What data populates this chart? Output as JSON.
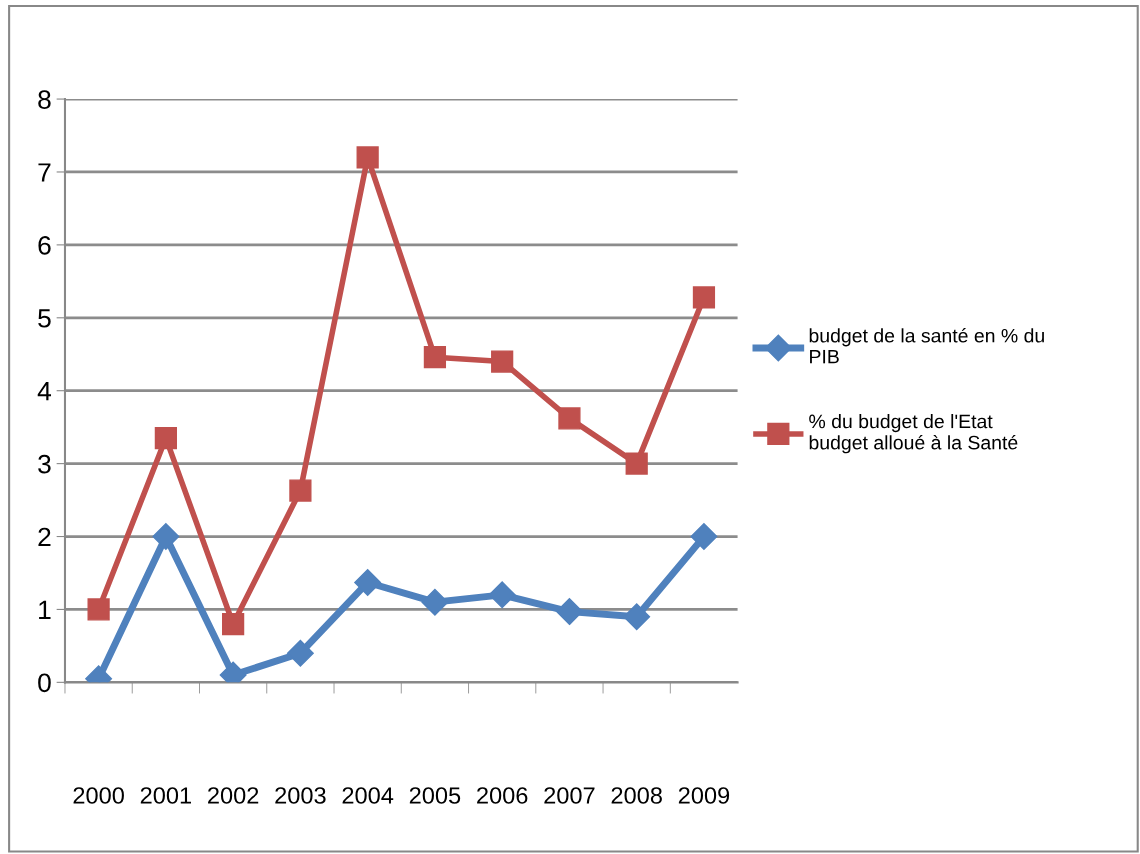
{
  "chart_data": {
    "type": "line",
    "categories": [
      "2000",
      "2001",
      "2002",
      "2003",
      "2004",
      "2005",
      "2006",
      "2007",
      "2008",
      "2009"
    ],
    "series": [
      {
        "name": "budget de la santé en % du PIB",
        "color": "#4f81bd",
        "marker": "diamond",
        "values": [
          0.05,
          2.0,
          0.1,
          0.4,
          1.37,
          1.1,
          1.2,
          0.97,
          0.9,
          2.0
        ]
      },
      {
        "name": "% du budget de l'Etat budget alloué à la Santé",
        "color": "#c0504d",
        "marker": "square",
        "values": [
          1.0,
          3.35,
          0.8,
          2.63,
          7.2,
          4.46,
          4.4,
          3.62,
          3.0,
          5.28
        ]
      }
    ],
    "ylim": [
      0,
      8
    ],
    "yticks": [
      0,
      1,
      2,
      3,
      4,
      5,
      6,
      7,
      8
    ],
    "grid": "y",
    "legend": "right",
    "line_style": "solid"
  }
}
